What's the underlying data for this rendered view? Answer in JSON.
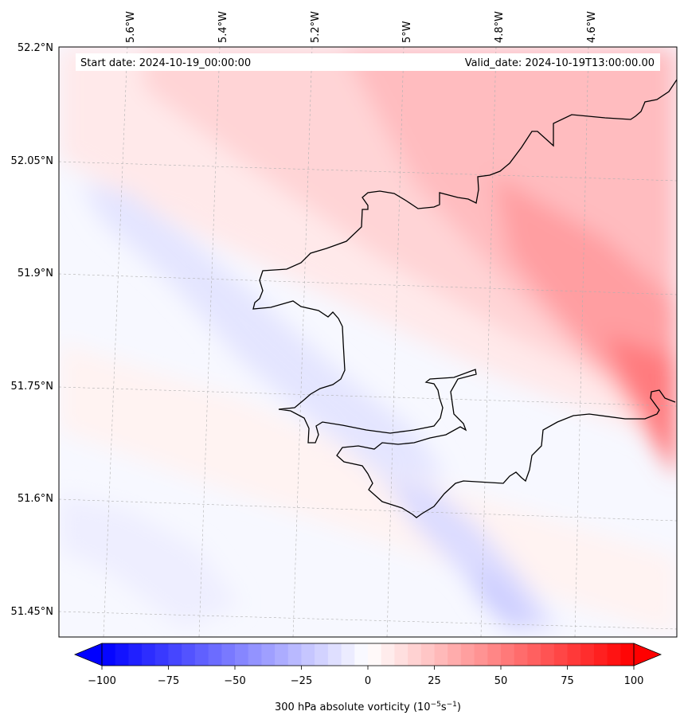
{
  "map": {
    "start_label": "Start date: 2024-10-19_00:00:00",
    "valid_label": "Valid_date: 2024-10-19T13:00:00.00",
    "lon_labels": [
      "5.6°W",
      "5.4°W",
      "5.2°W",
      "5°W",
      "4.8°W",
      "4.6°W"
    ],
    "lat_labels": [
      "52.2°N",
      "52.05°N",
      "51.9°N",
      "51.75°N",
      "51.6°N",
      "51.45°N"
    ],
    "coastline_color": "#000000",
    "grid_color": "#b0b0b0"
  },
  "colorbar": {
    "ticks": [
      "−100",
      "−75",
      "−50",
      "−25",
      "0",
      "25",
      "50",
      "75",
      "100"
    ],
    "tick_values": [
      -100,
      -75,
      -50,
      -25,
      0,
      25,
      50,
      75,
      100
    ],
    "vmin": -100,
    "vmax": 100,
    "levels": 40,
    "label_main": "300 hPa absolute vorticity (10",
    "label_exp1": "−5",
    "label_mid": "s",
    "label_exp2": "−1",
    "label_end": ")",
    "cmap_low": "#0000ff",
    "cmap_mid": "#ffffff",
    "cmap_high": "#ff0000"
  }
}
